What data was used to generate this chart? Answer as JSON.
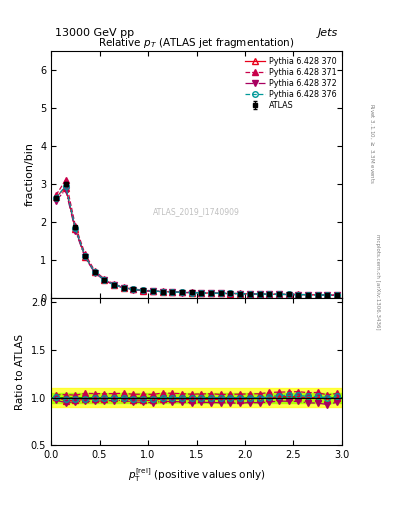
{
  "title": "Relative $p_T$ (ATLAS jet fragmentation)",
  "header_left": "13000 GeV pp",
  "header_right": "Jets",
  "ylabel_main": "fraction/bin",
  "ylabel_ratio": "Ratio to ATLAS",
  "watermark": "ATLAS_2019_I1740909",
  "atlas_data_x": [
    0.05,
    0.15,
    0.25,
    0.35,
    0.45,
    0.55,
    0.65,
    0.75,
    0.85,
    0.95,
    1.05,
    1.15,
    1.25,
    1.35,
    1.45,
    1.55,
    1.65,
    1.75,
    1.85,
    1.95,
    2.05,
    2.15,
    2.25,
    2.35,
    2.45,
    2.55,
    2.65,
    2.75,
    2.85,
    2.95
  ],
  "atlas_data_y": [
    2.62,
    3.0,
    1.85,
    1.1,
    0.68,
    0.47,
    0.34,
    0.26,
    0.22,
    0.19,
    0.175,
    0.16,
    0.15,
    0.14,
    0.135,
    0.125,
    0.12,
    0.115,
    0.11,
    0.105,
    0.1,
    0.095,
    0.09,
    0.085,
    0.082,
    0.078,
    0.075,
    0.072,
    0.07,
    0.065
  ],
  "atlas_data_err": [
    0.05,
    0.05,
    0.04,
    0.03,
    0.02,
    0.015,
    0.01,
    0.01,
    0.008,
    0.007,
    0.006,
    0.006,
    0.005,
    0.005,
    0.005,
    0.004,
    0.004,
    0.004,
    0.004,
    0.003,
    0.003,
    0.003,
    0.003,
    0.003,
    0.003,
    0.002,
    0.002,
    0.002,
    0.002,
    0.002
  ],
  "py370_y": [
    2.65,
    2.9,
    1.8,
    1.08,
    0.67,
    0.465,
    0.338,
    0.258,
    0.215,
    0.185,
    0.17,
    0.158,
    0.148,
    0.138,
    0.132,
    0.123,
    0.118,
    0.113,
    0.108,
    0.103,
    0.099,
    0.094,
    0.09,
    0.086,
    0.083,
    0.079,
    0.075,
    0.072,
    0.069,
    0.065
  ],
  "py371_y": [
    2.7,
    3.1,
    1.9,
    1.15,
    0.71,
    0.49,
    0.355,
    0.272,
    0.228,
    0.197,
    0.181,
    0.168,
    0.157,
    0.146,
    0.14,
    0.13,
    0.125,
    0.119,
    0.114,
    0.109,
    0.104,
    0.099,
    0.095,
    0.09,
    0.087,
    0.083,
    0.079,
    0.076,
    0.072,
    0.068
  ],
  "py372_y": [
    2.55,
    2.85,
    1.77,
    1.06,
    0.655,
    0.455,
    0.33,
    0.253,
    0.21,
    0.181,
    0.166,
    0.154,
    0.144,
    0.134,
    0.128,
    0.119,
    0.114,
    0.109,
    0.104,
    0.099,
    0.095,
    0.09,
    0.086,
    0.082,
    0.079,
    0.075,
    0.071,
    0.068,
    0.065,
    0.062
  ],
  "py376_y": [
    2.63,
    2.95,
    1.83,
    1.09,
    0.675,
    0.468,
    0.34,
    0.26,
    0.218,
    0.188,
    0.173,
    0.16,
    0.15,
    0.14,
    0.134,
    0.125,
    0.12,
    0.115,
    0.11,
    0.105,
    0.1,
    0.095,
    0.091,
    0.087,
    0.084,
    0.08,
    0.076,
    0.073,
    0.07,
    0.066
  ],
  "color_370": "#e8001a",
  "color_371": "#c8004a",
  "color_372": "#a80060",
  "color_376": "#009999",
  "color_atlas": "#000000",
  "ylim_main": [
    0,
    6.5
  ],
  "ylim_ratio": [
    0.5,
    2.05
  ],
  "xlim": [
    0,
    3.0
  ],
  "yticks_main": [
    0,
    1,
    2,
    3,
    4,
    5,
    6
  ],
  "yticks_ratio": [
    0.5,
    1.0,
    1.5,
    2.0
  ],
  "ratio_band_color_inner": "#aaff00",
  "ratio_band_color_outer": "#ffff00",
  "ratio_band_inner": 0.05,
  "ratio_band_outer": 0.1
}
